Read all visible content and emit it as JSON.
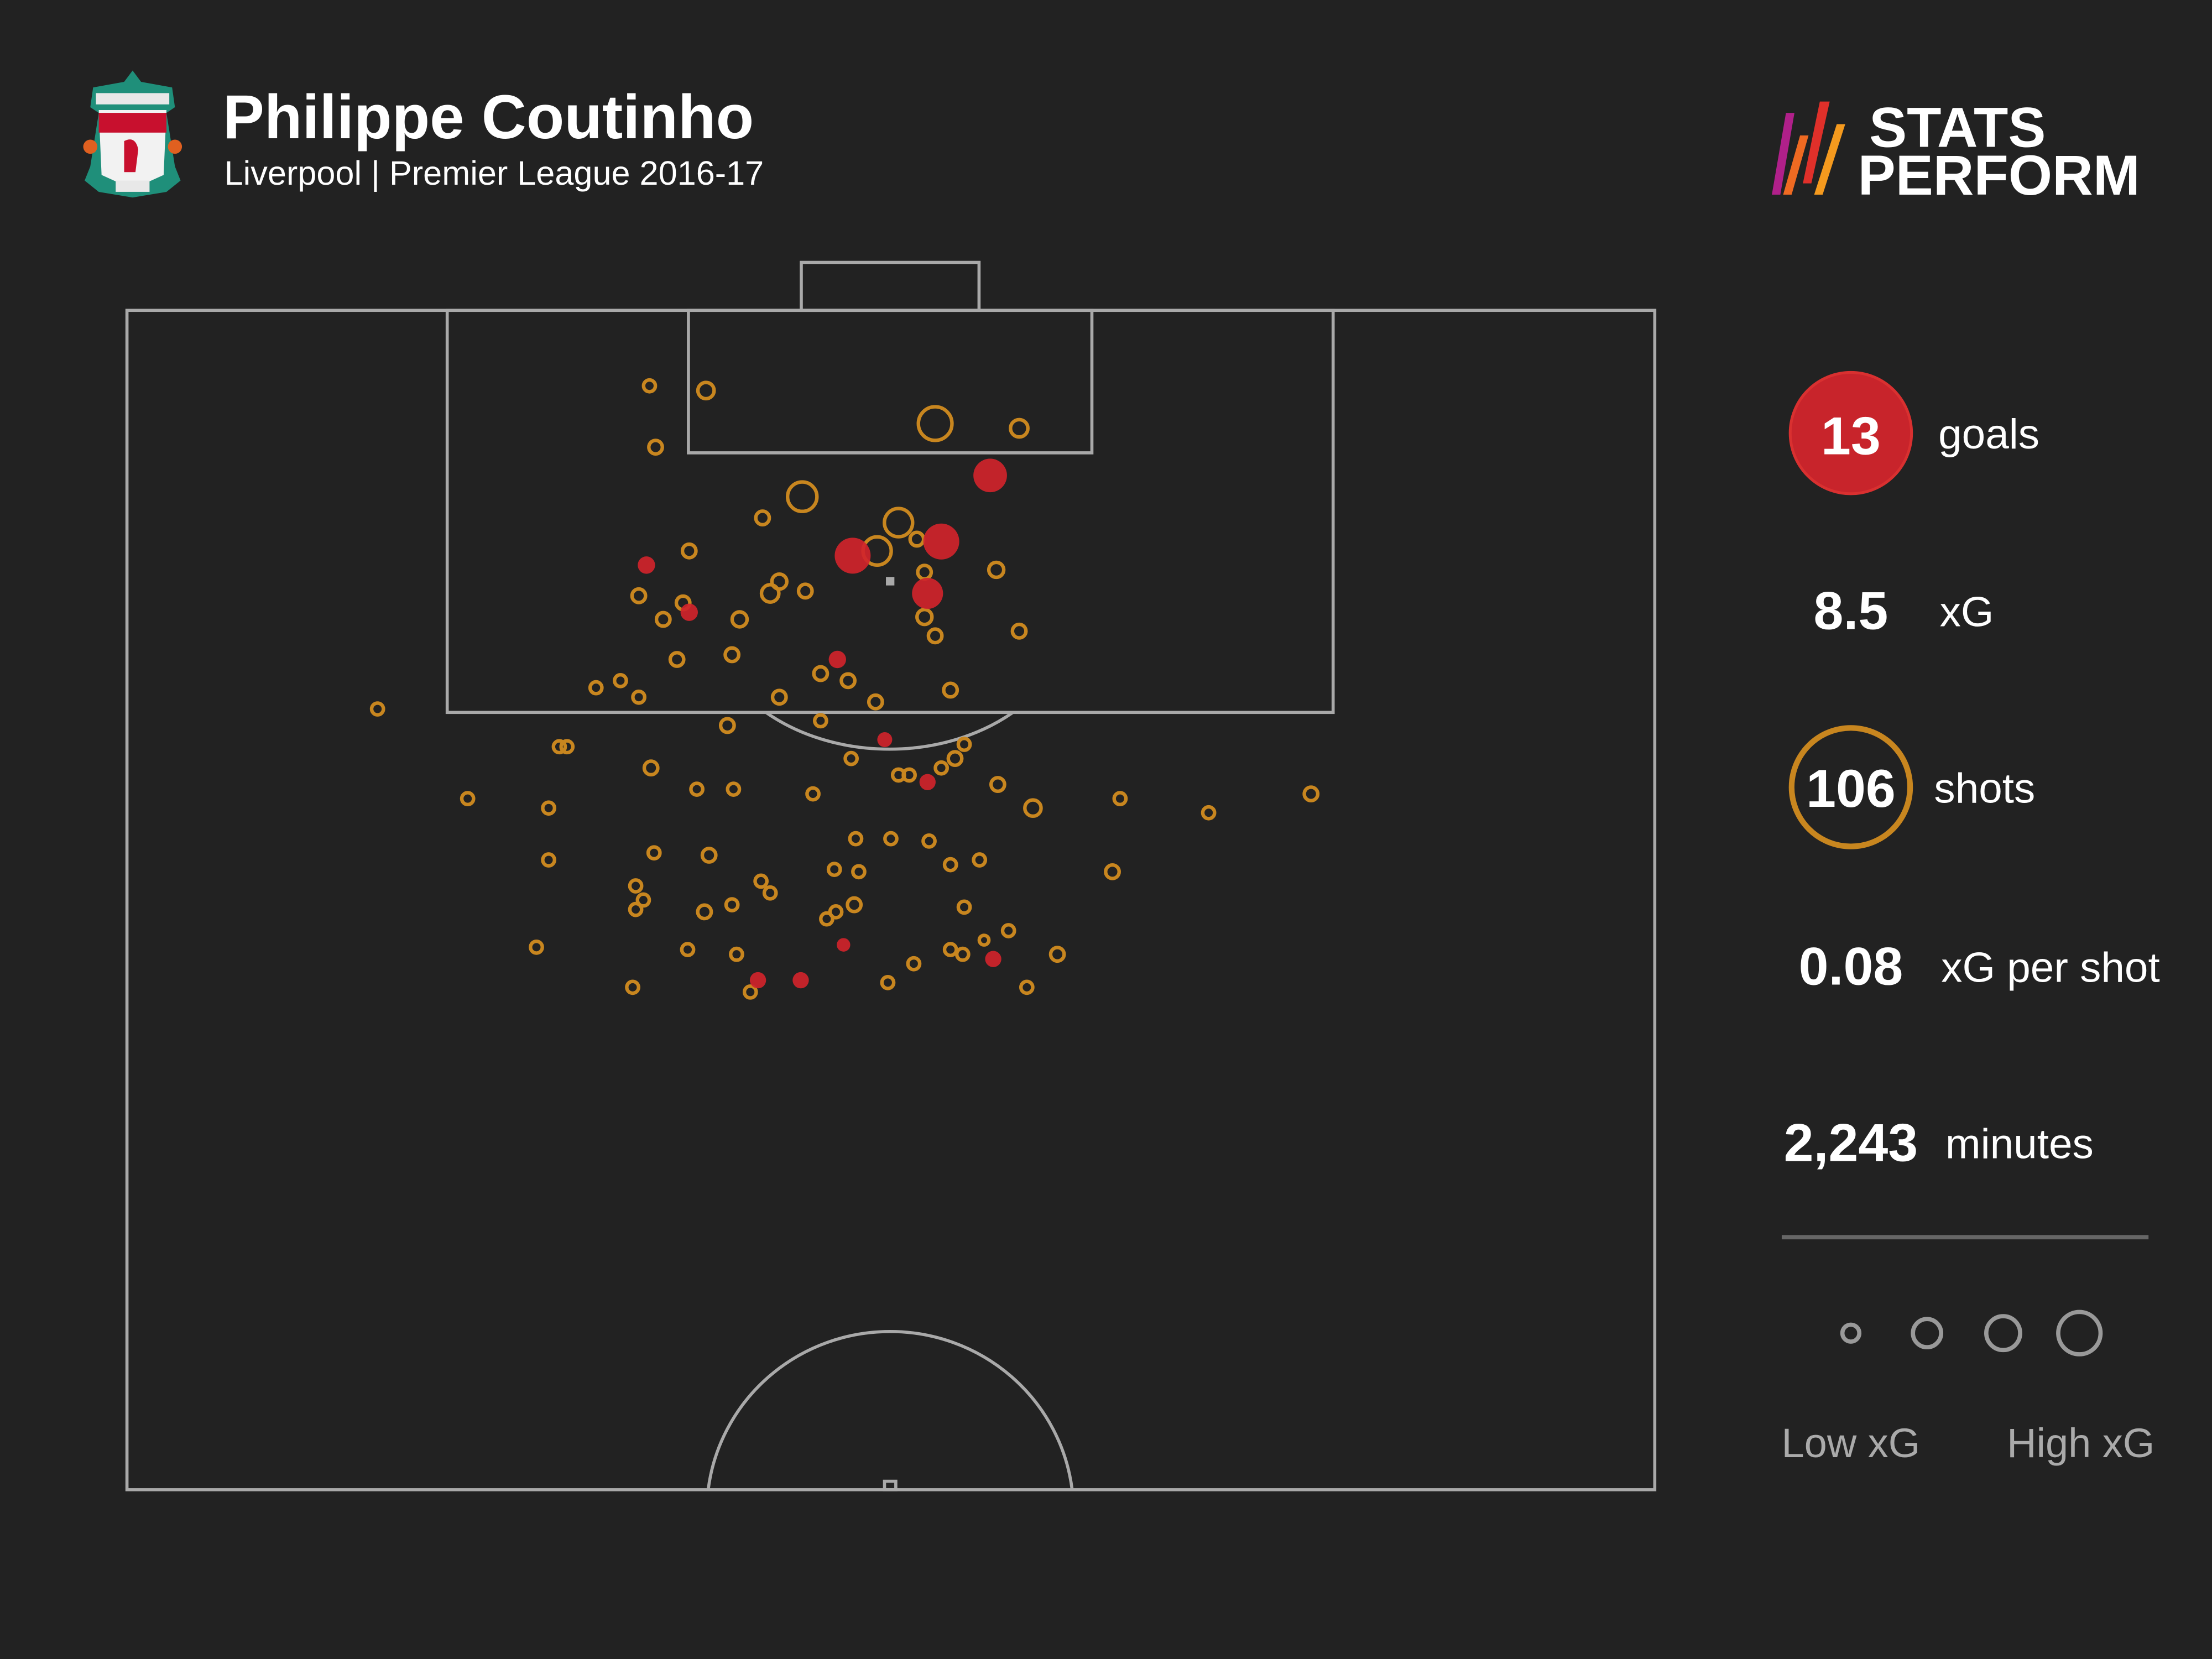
{
  "header": {
    "player": "Philippe Coutinho",
    "subtitle": "Liverpool | Premier League 2016-17",
    "club_crest": "Liverpool FC crest",
    "brand_line1": "STATS",
    "brand_line2": "PERFORM"
  },
  "stats": {
    "goals_value": "13",
    "goals_label": "goals",
    "xg_value": "8.5",
    "xg_label": "xG",
    "shots_value": "106",
    "shots_label": "shots",
    "xg_per_shot_value": "0.08",
    "xg_per_shot_label": "xG per shot",
    "minutes_value": "2,243",
    "minutes_label": "minutes"
  },
  "legend": {
    "low": "Low xG",
    "high": "High xG",
    "sizes_xg": [
      0.02,
      0.06,
      0.1,
      0.16
    ]
  },
  "colors": {
    "background": "#222222",
    "goal": "#d0242b",
    "shot": "#c8861f",
    "pitch_lines": "#a9a9a9"
  },
  "chart_data": {
    "type": "scatter",
    "description_units": "x = percent of pitch width (0 left touchline to 100 right), y = percent of half-pitch length from goal line (0) to halfway line (50)",
    "xlim": [
      0,
      100
    ],
    "ylim": [
      0,
      50
    ],
    "goals": [
      {
        "x": 56.5,
        "y": 7.0,
        "xg": 0.3
      },
      {
        "x": 53.3,
        "y": 9.8,
        "xg": 0.35
      },
      {
        "x": 47.5,
        "y": 10.4,
        "xg": 0.35
      },
      {
        "x": 52.4,
        "y": 12.0,
        "xg": 0.25
      },
      {
        "x": 34.0,
        "y": 10.8,
        "xg": 0.06
      },
      {
        "x": 36.8,
        "y": 12.8,
        "xg": 0.06
      },
      {
        "x": 46.5,
        "y": 14.8,
        "xg": 0.06
      },
      {
        "x": 49.6,
        "y": 18.2,
        "xg": 0.04
      },
      {
        "x": 52.4,
        "y": 20.0,
        "xg": 0.05
      },
      {
        "x": 46.9,
        "y": 26.9,
        "xg": 0.03
      },
      {
        "x": 41.3,
        "y": 28.4,
        "xg": 0.05
      },
      {
        "x": 44.1,
        "y": 28.4,
        "xg": 0.05
      },
      {
        "x": 56.7,
        "y": 27.5,
        "xg": 0.05
      }
    ],
    "misses": [
      {
        "x": 34.2,
        "y": 3.2,
        "xg": 0.02
      },
      {
        "x": 37.9,
        "y": 3.4,
        "xg": 0.05
      },
      {
        "x": 34.6,
        "y": 5.8,
        "xg": 0.03
      },
      {
        "x": 52.9,
        "y": 4.8,
        "xg": 0.3
      },
      {
        "x": 58.4,
        "y": 5.0,
        "xg": 0.06
      },
      {
        "x": 44.2,
        "y": 7.9,
        "xg": 0.22
      },
      {
        "x": 41.6,
        "y": 8.8,
        "xg": 0.03
      },
      {
        "x": 50.5,
        "y": 9.0,
        "xg": 0.2
      },
      {
        "x": 49.1,
        "y": 10.2,
        "xg": 0.2
      },
      {
        "x": 51.7,
        "y": 9.7,
        "xg": 0.03
      },
      {
        "x": 36.8,
        "y": 10.2,
        "xg": 0.03
      },
      {
        "x": 56.9,
        "y": 11.0,
        "xg": 0.04
      },
      {
        "x": 42.7,
        "y": 11.5,
        "xg": 0.04
      },
      {
        "x": 42.1,
        "y": 12.0,
        "xg": 0.06
      },
      {
        "x": 44.4,
        "y": 11.9,
        "xg": 0.03
      },
      {
        "x": 52.2,
        "y": 11.1,
        "xg": 0.03
      },
      {
        "x": 33.5,
        "y": 12.1,
        "xg": 0.03
      },
      {
        "x": 36.4,
        "y": 12.4,
        "xg": 0.03
      },
      {
        "x": 35.1,
        "y": 13.1,
        "xg": 0.03
      },
      {
        "x": 40.1,
        "y": 13.1,
        "xg": 0.04
      },
      {
        "x": 52.2,
        "y": 13.0,
        "xg": 0.04
      },
      {
        "x": 52.9,
        "y": 13.8,
        "xg": 0.03
      },
      {
        "x": 58.4,
        "y": 13.6,
        "xg": 0.03
      },
      {
        "x": 36.0,
        "y": 14.8,
        "xg": 0.03
      },
      {
        "x": 39.6,
        "y": 14.6,
        "xg": 0.03
      },
      {
        "x": 45.4,
        "y": 15.4,
        "xg": 0.03
      },
      {
        "x": 47.2,
        "y": 15.7,
        "xg": 0.03
      },
      {
        "x": 30.7,
        "y": 16.0,
        "xg": 0.02
      },
      {
        "x": 32.3,
        "y": 15.7,
        "xg": 0.02
      },
      {
        "x": 33.5,
        "y": 16.4,
        "xg": 0.02
      },
      {
        "x": 42.7,
        "y": 16.4,
        "xg": 0.03
      },
      {
        "x": 49.0,
        "y": 16.6,
        "xg": 0.03
      },
      {
        "x": 53.9,
        "y": 16.1,
        "xg": 0.03
      },
      {
        "x": 16.4,
        "y": 16.9,
        "xg": 0.02
      },
      {
        "x": 39.3,
        "y": 17.6,
        "xg": 0.03
      },
      {
        "x": 45.4,
        "y": 17.4,
        "xg": 0.02
      },
      {
        "x": 28.3,
        "y": 18.5,
        "xg": 0.02
      },
      {
        "x": 28.8,
        "y": 18.5,
        "xg": 0.02
      },
      {
        "x": 54.8,
        "y": 18.4,
        "xg": 0.02
      },
      {
        "x": 54.2,
        "y": 19.0,
        "xg": 0.03
      },
      {
        "x": 47.4,
        "y": 19.0,
        "xg": 0.02
      },
      {
        "x": 34.3,
        "y": 19.4,
        "xg": 0.03
      },
      {
        "x": 50.5,
        "y": 19.7,
        "xg": 0.02
      },
      {
        "x": 51.2,
        "y": 19.7,
        "xg": 0.02
      },
      {
        "x": 53.3,
        "y": 19.4,
        "xg": 0.02
      },
      {
        "x": 37.3,
        "y": 20.3,
        "xg": 0.02
      },
      {
        "x": 39.7,
        "y": 20.3,
        "xg": 0.02
      },
      {
        "x": 44.9,
        "y": 20.5,
        "xg": 0.02
      },
      {
        "x": 57.0,
        "y": 20.1,
        "xg": 0.03
      },
      {
        "x": 59.3,
        "y": 21.1,
        "xg": 0.05
      },
      {
        "x": 65.0,
        "y": 20.7,
        "xg": 0.02
      },
      {
        "x": 70.8,
        "y": 21.3,
        "xg": 0.02
      },
      {
        "x": 77.5,
        "y": 20.5,
        "xg": 0.03
      },
      {
        "x": 22.3,
        "y": 20.7,
        "xg": 0.02
      },
      {
        "x": 27.6,
        "y": 21.1,
        "xg": 0.02
      },
      {
        "x": 47.7,
        "y": 22.4,
        "xg": 0.02
      },
      {
        "x": 50.0,
        "y": 22.4,
        "xg": 0.02
      },
      {
        "x": 52.5,
        "y": 22.5,
        "xg": 0.02
      },
      {
        "x": 27.6,
        "y": 23.3,
        "xg": 0.02
      },
      {
        "x": 34.5,
        "y": 23.0,
        "xg": 0.02
      },
      {
        "x": 38.1,
        "y": 23.1,
        "xg": 0.03
      },
      {
        "x": 46.3,
        "y": 23.7,
        "xg": 0.02
      },
      {
        "x": 47.9,
        "y": 23.8,
        "xg": 0.02
      },
      {
        "x": 53.9,
        "y": 23.5,
        "xg": 0.02
      },
      {
        "x": 55.8,
        "y": 23.3,
        "xg": 0.02
      },
      {
        "x": 64.5,
        "y": 23.8,
        "xg": 0.03
      },
      {
        "x": 33.3,
        "y": 24.4,
        "xg": 0.02
      },
      {
        "x": 41.5,
        "y": 24.2,
        "xg": 0.02
      },
      {
        "x": 42.1,
        "y": 24.7,
        "xg": 0.02
      },
      {
        "x": 33.8,
        "y": 25.0,
        "xg": 0.02
      },
      {
        "x": 33.3,
        "y": 25.4,
        "xg": 0.02
      },
      {
        "x": 39.6,
        "y": 25.2,
        "xg": 0.02
      },
      {
        "x": 37.8,
        "y": 25.5,
        "xg": 0.03
      },
      {
        "x": 47.6,
        "y": 25.2,
        "xg": 0.03
      },
      {
        "x": 46.4,
        "y": 25.5,
        "xg": 0.02
      },
      {
        "x": 45.8,
        "y": 25.8,
        "xg": 0.02
      },
      {
        "x": 54.8,
        "y": 25.3,
        "xg": 0.02
      },
      {
        "x": 57.7,
        "y": 26.3,
        "xg": 0.02
      },
      {
        "x": 56.1,
        "y": 26.7,
        "xg": 0.01
      },
      {
        "x": 53.9,
        "y": 27.1,
        "xg": 0.02
      },
      {
        "x": 54.7,
        "y": 27.3,
        "xg": 0.02
      },
      {
        "x": 60.9,
        "y": 27.3,
        "xg": 0.03
      },
      {
        "x": 26.8,
        "y": 27.0,
        "xg": 0.02
      },
      {
        "x": 36.7,
        "y": 27.1,
        "xg": 0.02
      },
      {
        "x": 39.9,
        "y": 27.3,
        "xg": 0.02
      },
      {
        "x": 51.5,
        "y": 27.7,
        "xg": 0.02
      },
      {
        "x": 49.8,
        "y": 28.5,
        "xg": 0.02
      },
      {
        "x": 40.8,
        "y": 28.9,
        "xg": 0.02
      },
      {
        "x": 33.1,
        "y": 28.7,
        "xg": 0.02
      },
      {
        "x": 58.9,
        "y": 28.7,
        "xg": 0.02
      }
    ]
  }
}
